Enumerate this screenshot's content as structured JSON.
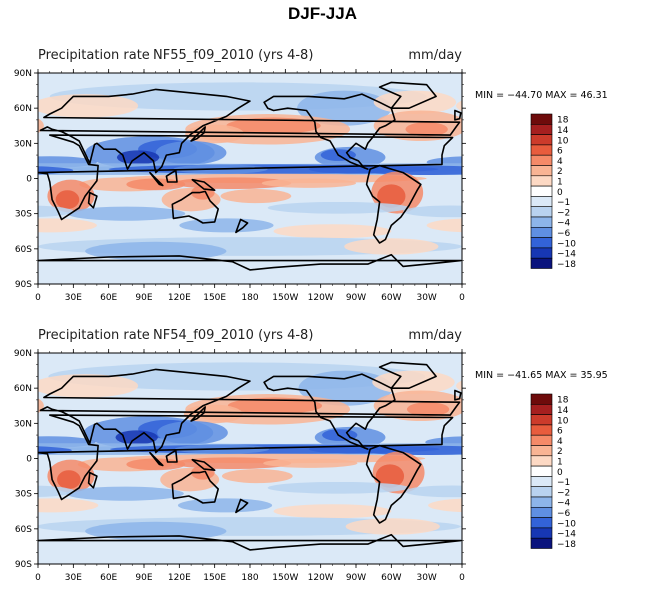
{
  "title": "DJF-JJA",
  "colors": {
    "ocean_base": "#dbe9f7",
    "land_outline": "#000000"
  },
  "colorbar": {
    "labels": [
      "18",
      "14",
      "10",
      "6",
      "4",
      "2",
      "1",
      "0",
      "−1",
      "−2",
      "−4",
      "−6",
      "−10",
      "−14",
      "−18"
    ],
    "colors": [
      "#6e0b0b",
      "#a51f1f",
      "#cc3b2b",
      "#e85c3d",
      "#f58a68",
      "#f9b494",
      "#fdd9c4",
      "#ffffff",
      "#dbe9f7",
      "#b9d3f0",
      "#8db5ea",
      "#5f8fe2",
      "#3363d8",
      "#1737b3",
      "#0a137d"
    ]
  },
  "axes": {
    "lat_labels": [
      "90N",
      "60N",
      "30N",
      "0",
      "30S",
      "60S",
      "90S"
    ],
    "lon_labels": [
      "0",
      "30E",
      "60E",
      "90E",
      "120E",
      "150E",
      "180",
      "150W",
      "120W",
      "90W",
      "60W",
      "30W",
      "0"
    ]
  },
  "panels": [
    {
      "left_title": "Precipitation rate",
      "center_title": "NF55_f09_2010 (yrs 4-8)",
      "units": "mm/day",
      "min_max": "MIN = −44.70 MAX =  46.31"
    },
    {
      "left_title": "Precipitation rate",
      "center_title": "NF54_f09_2010 (yrs 4-8)",
      "units": "mm/day",
      "min_max": "MIN = −41.65 MAX =  35.95"
    }
  ]
}
